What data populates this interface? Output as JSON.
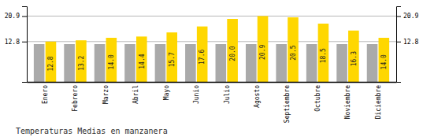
{
  "chart_data": {
    "type": "bar",
    "title": "Temperaturas Medias en manzanera",
    "categories": [
      "Enero",
      "Febrero",
      "Marzo",
      "Abril",
      "Mayo",
      "Junio",
      "Julio",
      "Agosto",
      "Septiembre",
      "Octubre",
      "Noviembre",
      "Diciembre"
    ],
    "series": [
      {
        "color": "#AAAAAA",
        "values": [
          12.0,
          12.0,
          12.0,
          12.0,
          12.0,
          12.0,
          12.0,
          12.0,
          12.0,
          12.0,
          12.0,
          12.0
        ]
      },
      {
        "color": "#FFD700",
        "data_labels": true,
        "values": [
          12.8,
          13.2,
          14.0,
          14.4,
          15.7,
          17.6,
          20.0,
          20.9,
          20.5,
          18.5,
          16.3,
          14.0
        ],
        "value_labels": [
          "12.8",
          "13.2",
          "14.0",
          "14.4",
          "15.7",
          "17.6",
          "20.0",
          "20.9",
          "20.5",
          "18.5",
          "16.3",
          "14.0"
        ]
      }
    ],
    "ylim": [
      0,
      24.0
    ],
    "yticks": [
      12.8,
      20.9
    ],
    "y2lim": [
      0,
      24.0
    ],
    "y2ticks": [
      12.8,
      20.9
    ],
    "grid": true
  }
}
